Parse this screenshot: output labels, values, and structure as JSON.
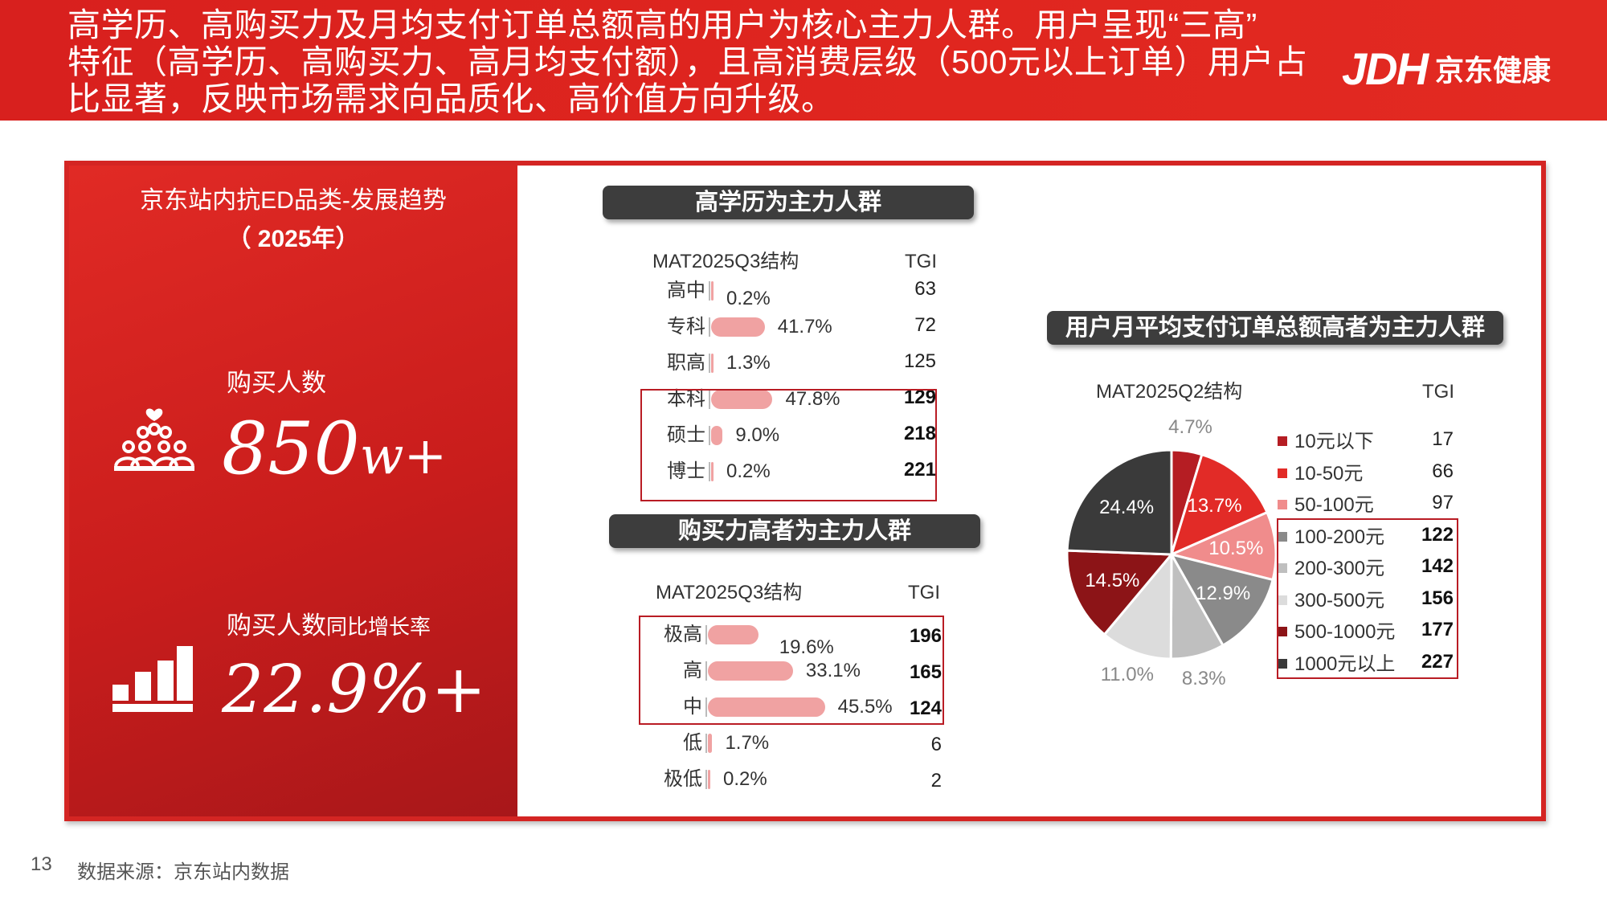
{
  "header": {
    "lines": [
      "高学历、高购买力及月均支付订单总额高的用户为核心主力人群。用户呈现“三高”",
      "特征（高学历、高购买力、高月均支付额），且高消费层级（500元以上订单）用户占",
      "比显著，反映市场需求向品质化、高价值方向升级。"
    ],
    "logo_mark": "JDH",
    "logo_text": "京东健康"
  },
  "left_panel": {
    "title_line1": "京东站内抗ED品类-发展趋势",
    "title_line2": "（ 2025年）",
    "metric1_label": "购买人数",
    "metric1_value": "850",
    "metric1_unit": "w+",
    "metric2_label": "购买人数",
    "metric2_label_suffix": "同比增长率",
    "metric2_value": "22.9%+"
  },
  "chart_data": [
    {
      "type": "bar",
      "title": "高学历为主力人群",
      "header_label": "MAT2025Q3结构",
      "tgi_label": "TGI",
      "categories": [
        "高中",
        "专科",
        "职高",
        "本科",
        "硕士",
        "博士"
      ],
      "values": [
        0.2,
        41.7,
        1.3,
        47.8,
        9.0,
        0.2
      ],
      "value_labels": [
        "0.2%",
        "41.7%",
        "1.3%",
        "47.8%",
        "9.0%",
        "0.2%"
      ],
      "tgi": [
        "63",
        "72",
        "125",
        "129",
        "218",
        "221"
      ],
      "highlighted": [
        "本科",
        "硕士",
        "博士"
      ],
      "bar_color": "#f0a2a2"
    },
    {
      "type": "bar",
      "title": "购买力高者为主力人群",
      "header_label": "MAT2025Q3结构",
      "tgi_label": "TGI",
      "categories": [
        "极高",
        "高",
        "中",
        "低",
        "极低"
      ],
      "values": [
        19.6,
        33.1,
        45.5,
        1.7,
        0.2
      ],
      "value_labels": [
        "19.6%",
        "33.1%",
        "45.5%",
        "1.7%",
        "0.2%"
      ],
      "tgi": [
        "196",
        "165",
        "124",
        "6",
        "2"
      ],
      "highlighted": [
        "极高",
        "高",
        "中"
      ],
      "bar_color": "#f0a2a2"
    },
    {
      "type": "pie",
      "title": "用户月平均支付订单总额高者为主力人群",
      "header_label": "MAT2025Q2结构",
      "tgi_label": "TGI",
      "categories": [
        "10元以下",
        "10-50元",
        "50-100元",
        "100-200元",
        "200-300元",
        "300-500元",
        "500-1000元",
        "1000元以上"
      ],
      "values": [
        4.7,
        13.7,
        10.5,
        12.9,
        8.3,
        11.0,
        14.5,
        24.4
      ],
      "value_labels": [
        "4.7%",
        "13.7%",
        "10.5%",
        "12.9%",
        "8.3%",
        "11.0%",
        "14.5%",
        "24.4%"
      ],
      "tgi": [
        "17",
        "66",
        "97",
        "122",
        "142",
        "156",
        "177",
        "227"
      ],
      "colors": [
        "#b51d23",
        "#e22b27",
        "#f08c8c",
        "#8a8a8a",
        "#bfbfbf",
        "#dcdcdc",
        "#8c1417",
        "#3a3a3a"
      ],
      "highlighted": [
        "100-200元",
        "200-300元",
        "300-500元",
        "500-1000元",
        "1000元以上"
      ]
    }
  ],
  "footer": {
    "page_number": "13",
    "source": "数据来源：京东站内数据"
  }
}
